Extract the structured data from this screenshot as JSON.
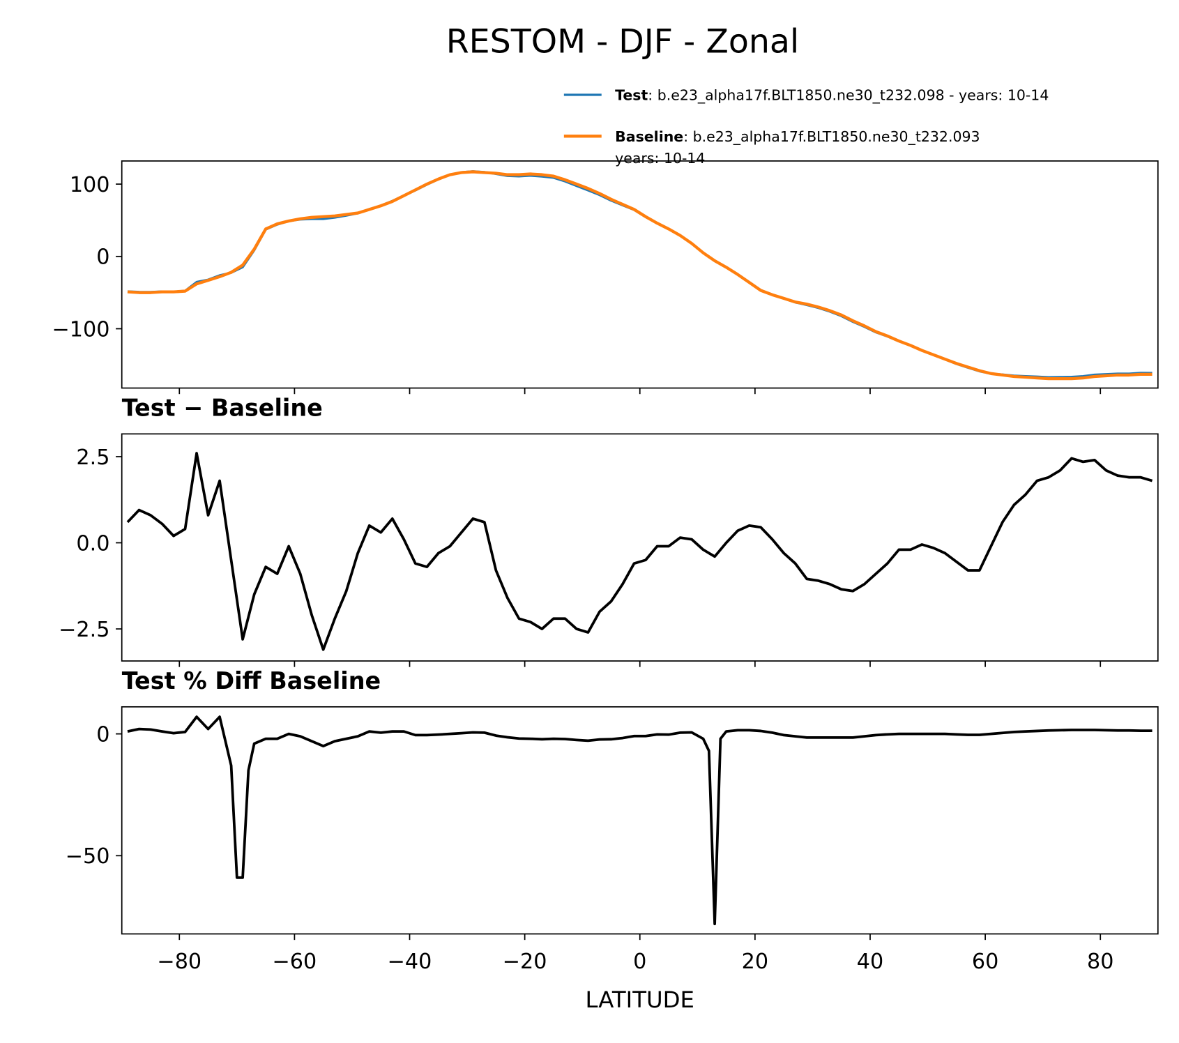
{
  "chart_data": [
    {
      "type": "line",
      "title": "RESTOM - DJF - Zonal",
      "x": [
        -89,
        -87,
        -85,
        -83,
        -81,
        -79,
        -77,
        -75,
        -73,
        -71,
        -69,
        -67,
        -65,
        -63,
        -61,
        -59,
        -57,
        -55,
        -53,
        -51,
        -49,
        -47,
        -45,
        -43,
        -41,
        -39,
        -37,
        -35,
        -33,
        -31,
        -29,
        -27,
        -25,
        -23,
        -21,
        -19,
        -17,
        -15,
        -13,
        -11,
        -9,
        -7,
        -5,
        -3,
        -1,
        1,
        3,
        5,
        7,
        9,
        11,
        13,
        15,
        17,
        19,
        21,
        23,
        25,
        27,
        29,
        31,
        33,
        35,
        37,
        39,
        41,
        43,
        45,
        47,
        49,
        51,
        53,
        55,
        57,
        59,
        61,
        63,
        65,
        67,
        69,
        71,
        73,
        75,
        77,
        79,
        81,
        83,
        85,
        87,
        89
      ],
      "series": [
        {
          "name": "Test",
          "description": [
            ": b.e23_alpha17f.BLT1850.ne30_t232.098 - years: 10-14"
          ],
          "color": "#1f77b4",
          "values": [
            -48.4,
            -49.1,
            -49.2,
            -48.5,
            -48.8,
            -47.6,
            -35.4,
            -32.2,
            -26.2,
            -22.5,
            -14.8,
            8.5,
            37.3,
            44.1,
            48.9,
            51.1,
            51.9,
            51.9,
            53.8,
            56.6,
            59.7,
            65.5,
            70.3,
            76.7,
            84.1,
            91.4,
            99.3,
            106.7,
            112.9,
            116.3,
            117.7,
            116.6,
            114.2,
            111.4,
            110.8,
            111.7,
            110.5,
            108.8,
            103.8,
            97.5,
            91.4,
            85,
            77.3,
            70.8,
            64.4,
            54.5,
            45.9,
            37.9,
            29.2,
            18.1,
            4.8,
            -6.4,
            -15,
            -24.7,
            -35.5,
            -46.6,
            -52.9,
            -58.3,
            -63.6,
            -67.1,
            -71.1,
            -76.2,
            -82.4,
            -90.4,
            -97.2,
            -104.9,
            -110.6,
            -117.2,
            -123.2,
            -130.1,
            -136.2,
            -142.3,
            -148.6,
            -153.8,
            -158.8,
            -162.1,
            -163.4,
            -164.9,
            -165.6,
            -166.2,
            -167.1,
            -166.9,
            -166.6,
            -165.7,
            -163.6,
            -162.9,
            -162.1,
            -162.1,
            -161.1,
            -161.2
          ]
        },
        {
          "name": "Baseline",
          "description": [
            ": b.e23_alpha17f.BLT1850.ne30_t232.093",
            "years: 10-14"
          ],
          "color": "#ff7f0e",
          "values": [
            -49,
            -50,
            -50,
            -49,
            -49,
            -48,
            -38,
            -33,
            -28,
            -22,
            -12,
            10,
            38,
            45,
            49,
            52,
            54,
            55,
            56,
            58,
            60,
            65,
            70,
            76,
            84,
            92,
            100,
            107,
            113,
            116,
            117,
            116,
            115,
            113,
            113,
            114,
            113,
            111,
            106,
            100,
            94,
            87,
            79,
            72,
            65,
            55,
            46,
            38,
            29,
            18,
            5,
            -6,
            -15,
            -25,
            -36,
            -47,
            -53,
            -58,
            -63,
            -66,
            -70,
            -75,
            -81,
            -89,
            -96,
            -104,
            -110,
            -117,
            -123,
            -130,
            -136,
            -142,
            -148,
            -153,
            -158,
            -162,
            -164,
            -166,
            -167,
            -168,
            -169,
            -169,
            -169,
            -168,
            -166,
            -165,
            -164,
            -164,
            -163,
            -163
          ]
        }
      ],
      "xlim": [
        -90,
        90
      ],
      "xticks": [
        -80,
        -60,
        -40,
        -20,
        0,
        20,
        40,
        60,
        80
      ],
      "ylim": [
        -182,
        132
      ],
      "yticks": [
        100,
        {
          "value": 0,
          "label": "0"
        },
        {
          "value": -100,
          "label": "−100"
        }
      ]
    },
    {
      "type": "line",
      "title": "Test − Baseline",
      "color": "#000000",
      "x": [
        -89,
        -87,
        -85,
        -83,
        -81,
        -79,
        -77,
        -75,
        -73,
        -71,
        -69,
        -67,
        -65,
        -63,
        -61,
        -59,
        -57,
        -55,
        -53,
        -51,
        -49,
        -47,
        -45,
        -43,
        -41,
        -39,
        -37,
        -35,
        -33,
        -31,
        -29,
        -27,
        -25,
        -23,
        -21,
        -19,
        -17,
        -15,
        -13,
        -11,
        -9,
        -7,
        -5,
        -3,
        -1,
        1,
        3,
        5,
        7,
        9,
        11,
        13,
        15,
        17,
        19,
        21,
        23,
        25,
        27,
        29,
        31,
        33,
        35,
        37,
        39,
        41,
        43,
        45,
        47,
        49,
        51,
        53,
        55,
        57,
        59,
        61,
        63,
        65,
        67,
        69,
        71,
        73,
        75,
        77,
        79,
        81,
        83,
        85,
        87,
        89
      ],
      "values": [
        0.6,
        0.95,
        0.8,
        0.55,
        0.2,
        0.4,
        2.6,
        0.8,
        1.8,
        -0.5,
        -2.8,
        -1.5,
        -0.7,
        -0.9,
        -0.1,
        -0.9,
        -2.1,
        -3.1,
        -2.2,
        -1.4,
        -0.3,
        0.5,
        0.3,
        0.7,
        0.1,
        -0.6,
        -0.7,
        -0.3,
        -0.1,
        0.3,
        0.7,
        0.6,
        -0.8,
        -1.6,
        -2.2,
        -2.3,
        -2.5,
        -2.2,
        -2.2,
        -2.5,
        -2.6,
        -2.0,
        -1.7,
        -1.2,
        -0.6,
        -0.5,
        -0.1,
        -0.1,
        0.15,
        0.1,
        -0.2,
        -0.4,
        0.0,
        0.35,
        0.5,
        0.45,
        0.1,
        -0.3,
        -0.6,
        -1.05,
        -1.1,
        -1.2,
        -1.35,
        -1.4,
        -1.2,
        -0.9,
        -0.6,
        -0.2,
        -0.2,
        -0.05,
        -0.15,
        -0.3,
        -0.55,
        -0.8,
        -0.8,
        -0.1,
        0.6,
        1.1,
        1.4,
        1.8,
        1.9,
        2.1,
        2.45,
        2.35,
        2.4,
        2.1,
        1.95,
        1.9,
        1.9,
        1.8
      ],
      "xlim": [
        -90,
        90
      ],
      "xticks": [
        -80,
        -60,
        -40,
        -20,
        0,
        20,
        40,
        60,
        80
      ],
      "ylim": [
        -3.43,
        3.16
      ],
      "yticks": [
        2.5,
        {
          "value": 0,
          "label": "0.0"
        },
        {
          "value": -2.5,
          "label": "−2.5"
        }
      ]
    },
    {
      "type": "line",
      "title": "Test % Diff Baseline",
      "xlabel": "LATITUDE",
      "color": "#000000",
      "x": [
        -89,
        -87,
        -85,
        -83,
        -81,
        -79,
        -77,
        -75,
        -73,
        -72,
        -71,
        -70,
        -69,
        -68,
        -67,
        -65,
        -63,
        -61,
        -59,
        -57,
        -55,
        -53,
        -51,
        -49,
        -47,
        -45,
        -43,
        -41,
        -39,
        -37,
        -35,
        -33,
        -31,
        -29,
        -27,
        -25,
        -23,
        -21,
        -19,
        -17,
        -15,
        -13,
        -11,
        -9,
        -7,
        -5,
        -3,
        -1,
        1,
        3,
        5,
        7,
        9,
        11,
        12,
        13,
        14,
        15,
        17,
        19,
        21,
        23,
        25,
        27,
        29,
        31,
        33,
        35,
        37,
        39,
        41,
        43,
        45,
        47,
        49,
        51,
        53,
        55,
        57,
        59,
        61,
        63,
        65,
        67,
        69,
        71,
        73,
        75,
        77,
        79,
        81,
        83,
        85,
        87,
        89
      ],
      "values": [
        1,
        2,
        1.8,
        1,
        0.3,
        0.8,
        7,
        2,
        7,
        -3,
        -13,
        -59,
        -59,
        -15,
        -4,
        -2,
        -2,
        0,
        -1,
        -3,
        -5,
        -3,
        -2,
        -1,
        1,
        0.5,
        1,
        1,
        -0.5,
        -0.5,
        -0.3,
        0,
        0.3,
        0.6,
        0.5,
        -0.7,
        -1.4,
        -1.9,
        -2,
        -2.2,
        -2,
        -2.1,
        -2.5,
        -2.8,
        -2.3,
        -2.2,
        -1.7,
        -0.9,
        -0.9,
        -0.2,
        -0.3,
        0.5,
        0.6,
        -2,
        -7,
        -78,
        -2,
        1,
        1.5,
        1.5,
        1.2,
        0.5,
        -0.5,
        -1,
        -1.5,
        -1.5,
        -1.5,
        -1.5,
        -1.5,
        -1,
        -0.5,
        -0.2,
        0,
        0,
        0,
        0,
        0,
        -0.2,
        -0.4,
        -0.4,
        0,
        0.4,
        0.8,
        1,
        1.2,
        1.4,
        1.5,
        1.6,
        1.6,
        1.6,
        1.5,
        1.4,
        1.4,
        1.3,
        1.3
      ],
      "xlim": [
        -90,
        90
      ],
      "xticks": [
        {
          "value": -80,
          "label": "−80"
        },
        {
          "value": -60,
          "label": "−60"
        },
        {
          "value": -40,
          "label": "−40"
        },
        {
          "value": -20,
          "label": "−20"
        },
        0,
        20,
        40,
        60,
        80
      ],
      "ylim": [
        -82.1,
        11.1
      ],
      "yticks": [
        0,
        {
          "value": -50,
          "label": "−50"
        }
      ]
    }
  ]
}
